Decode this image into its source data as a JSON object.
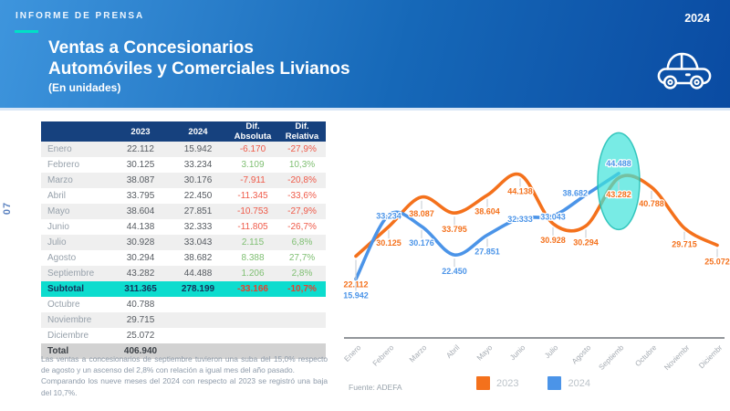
{
  "header": {
    "kicker": "INFORME DE PRENSA",
    "title_line1": "Ventas a Concesionarios",
    "title_line2": "Automóviles y Comerciales Livianos",
    "subtitle": "(En unidades)",
    "year": "2024",
    "accent_color": "#00e0c6",
    "gradient_left": "#3e95dd",
    "gradient_right": "#0a4ba2"
  },
  "page_number": "07",
  "table": {
    "headers": [
      "",
      "2023",
      "2024",
      "Dif. Absoluta",
      "Dif. Relativa"
    ],
    "rows": [
      {
        "label": "Enero",
        "y2023": "22.112",
        "y2024": "15.942",
        "abs": "-6.170",
        "rel": "-27,9%"
      },
      {
        "label": "Febrero",
        "y2023": "30.125",
        "y2024": "33.234",
        "abs": "3.109",
        "rel": "10,3%"
      },
      {
        "label": "Marzo",
        "y2023": "38.087",
        "y2024": "30.176",
        "abs": "-7.911",
        "rel": "-20,8%"
      },
      {
        "label": "Abril",
        "y2023": "33.795",
        "y2024": "22.450",
        "abs": "-11.345",
        "rel": "-33,6%"
      },
      {
        "label": "Mayo",
        "y2023": "38.604",
        "y2024": "27.851",
        "abs": "-10.753",
        "rel": "-27,9%"
      },
      {
        "label": "Junio",
        "y2023": "44.138",
        "y2024": "32.333",
        "abs": "-11.805",
        "rel": "-26,7%"
      },
      {
        "label": "Julio",
        "y2023": "30.928",
        "y2024": "33.043",
        "abs": "2.115",
        "rel": "6,8%"
      },
      {
        "label": "Agosto",
        "y2023": "30.294",
        "y2024": "38.682",
        "abs": "8.388",
        "rel": "27,7%"
      },
      {
        "label": "Septiembre",
        "y2023": "43.282",
        "y2024": "44.488",
        "abs": "1.206",
        "rel": "2,8%"
      },
      {
        "label": "Subtotal",
        "y2023": "311.365",
        "y2024": "278.199",
        "abs": "-33.166",
        "rel": "-10,7%",
        "style": "subtotal"
      },
      {
        "label": "Octubre",
        "y2023": "40.788",
        "y2024": "",
        "abs": "",
        "rel": ""
      },
      {
        "label": "Noviembre",
        "y2023": "29.715",
        "y2024": "",
        "abs": "",
        "rel": ""
      },
      {
        "label": "Diciembre",
        "y2023": "25.072",
        "y2024": "",
        "abs": "",
        "rel": ""
      },
      {
        "label": "Total",
        "y2023": "406.940",
        "y2024": "",
        "abs": "",
        "rel": "",
        "style": "total"
      }
    ],
    "colors": {
      "header_bg": "#16417e",
      "subtotal_bg": "#0ddcce",
      "total_bg": "#d2d2d2",
      "negative": "#ef5a49",
      "positive": "#7fbf72",
      "zebra": "#efefef"
    }
  },
  "notes": {
    "paragraph1": "Las ventas a concesionarios de septiembre tuvieron una suba del 15,0% respecto de agosto y un ascenso del 2,8% con relación a igual mes del año pasado.",
    "paragraph2": "Comparando los nueve meses del 2024 con respecto al 2023 se registró una baja del 10,7%."
  },
  "chart_data": {
    "type": "line",
    "smooth": true,
    "grid": false,
    "legend_position": "bottom",
    "categories": [
      "Enero",
      "Febrero",
      "Marzo",
      "Abril",
      "Mayo",
      "Junio",
      "Julio",
      "Agosto",
      "Septiemb",
      "Octubre",
      "Noviembr",
      "Diciembr"
    ],
    "series": [
      {
        "name": "2023",
        "color": "#f4711c",
        "values": [
          22112,
          30125,
          38087,
          33795,
          38604,
          44138,
          30928,
          30294,
          43282,
          40788,
          29715,
          25072
        ],
        "label_pos": [
          "below-far",
          "below",
          "below",
          "below",
          "below",
          "below",
          "below",
          "below",
          "below",
          "below",
          "below",
          "below"
        ]
      },
      {
        "name": "2024",
        "color": "#4b94e8",
        "values": [
          15942,
          33234,
          30176,
          22450,
          27851,
          32333,
          33043,
          38682,
          44488
        ],
        "label_pos": [
          "below",
          "center",
          "below",
          "below",
          "below",
          "center",
          "center",
          "left",
          "above"
        ]
      }
    ],
    "ylim": [
      0,
      58800
    ],
    "highlight": {
      "shape": "ellipse",
      "category_index": 8,
      "fill": "#3fe2da",
      "stroke": "#1fbdb4",
      "opacity": 0.7
    },
    "source": "Fuente: ADEFA"
  }
}
